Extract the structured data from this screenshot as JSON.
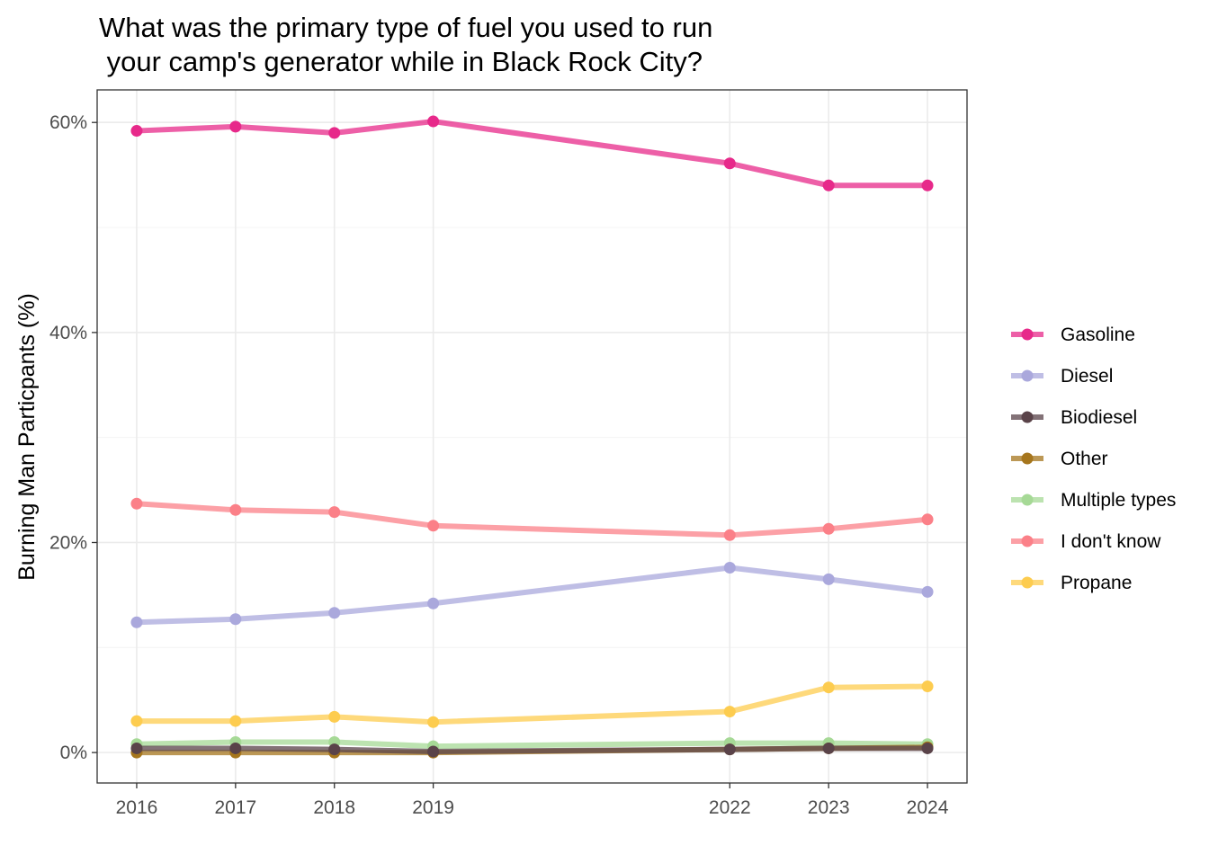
{
  "chart_data": {
    "type": "line",
    "title_lines": [
      "What was the primary type of fuel you used to run",
      " your camp's generator while in Black Rock City?"
    ],
    "xlabel": "",
    "ylabel": "Burning Man Particpants (%)",
    "x": [
      2016,
      2017,
      2018,
      2019,
      2022,
      2023,
      2024
    ],
    "x_tick_labels": [
      "2016",
      "2017",
      "2018",
      "2019",
      "2022",
      "2023",
      "2024"
    ],
    "xlim": [
      2015.6,
      2024.4
    ],
    "ylim": [
      -2.9,
      63.1
    ],
    "y_ticks": [
      0,
      20,
      40,
      60
    ],
    "y_tick_labels": [
      "0%",
      "20%",
      "40%",
      "60%"
    ],
    "grid": true,
    "legend_position": "right",
    "series": [
      {
        "name": "Gasoline",
        "color": "#e7298a",
        "values": [
          59.2,
          59.6,
          59.0,
          60.1,
          56.1,
          54.0,
          54.0
        ]
      },
      {
        "name": "Diesel",
        "color": "#aaa8dc",
        "values": [
          12.4,
          12.7,
          13.3,
          14.2,
          17.6,
          16.5,
          15.3
        ]
      },
      {
        "name": "Biodiesel",
        "color": "#5a4349",
        "values": [
          0.4,
          0.4,
          0.3,
          0.1,
          0.3,
          0.4,
          0.4
        ]
      },
      {
        "name": "Other",
        "color": "#a6761d",
        "values": [
          0.0,
          0.0,
          0.0,
          0.0,
          0.3,
          0.4,
          0.5
        ]
      },
      {
        "name": "Multiple types",
        "color": "#a6d996",
        "values": [
          0.8,
          1.0,
          1.0,
          0.6,
          0.9,
          0.9,
          0.8
        ]
      },
      {
        "name": "I don't know",
        "color": "#fb8088",
        "values": [
          23.7,
          23.1,
          22.9,
          21.6,
          20.7,
          21.3,
          22.2
        ]
      },
      {
        "name": "Propane",
        "color": "#fdcc4f",
        "values": [
          3.0,
          3.0,
          3.4,
          2.9,
          3.9,
          6.2,
          6.3
        ]
      }
    ],
    "draw_order": [
      "Propane",
      "I don't know",
      "Multiple types",
      "Other",
      "Biodiesel",
      "Diesel",
      "Gasoline"
    ]
  }
}
